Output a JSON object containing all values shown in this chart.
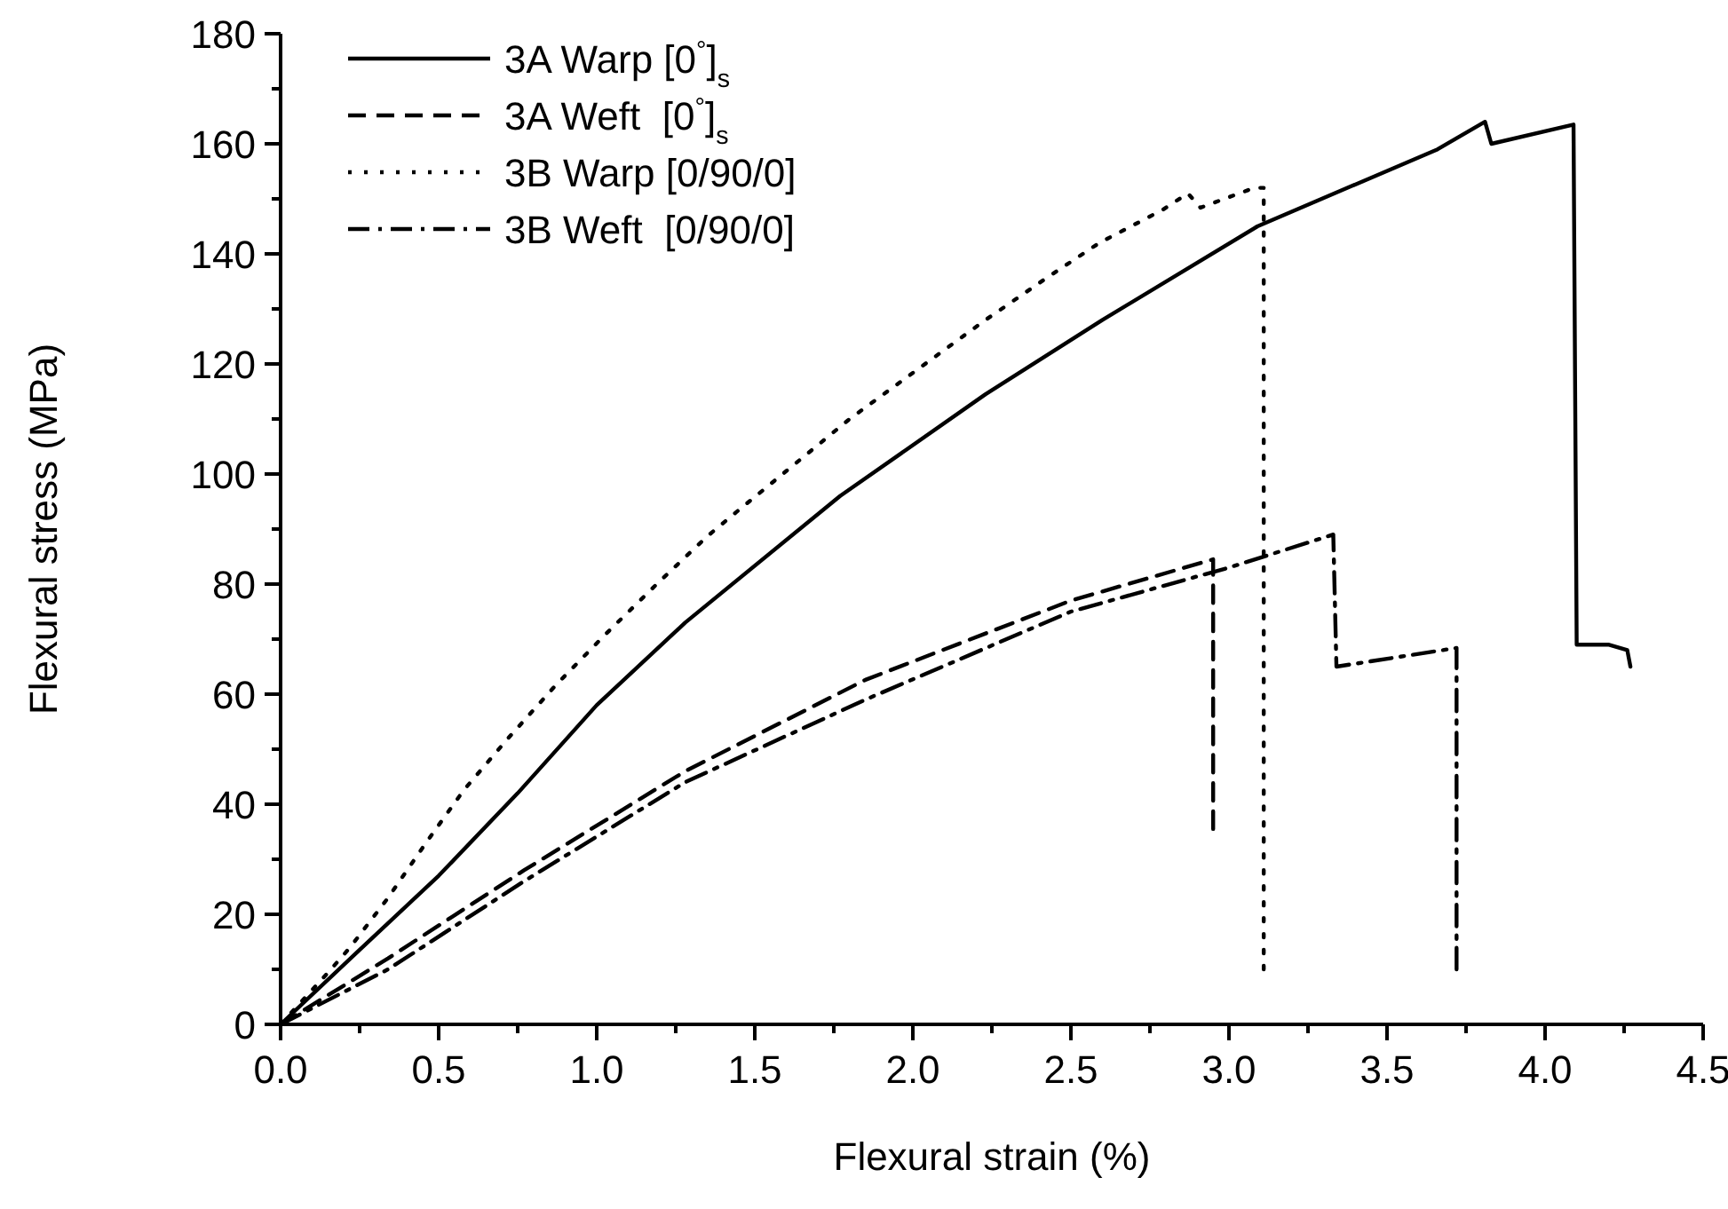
{
  "chart_data": {
    "type": "line",
    "xlabel": "Flexural strain (%)",
    "ylabel": "Flexural stress (MPa)",
    "xlim": [
      0,
      4.5
    ],
    "ylim": [
      0,
      180
    ],
    "xticks": [
      {
        "value": 0,
        "label": "0.0"
      },
      {
        "value": 0.25,
        "label": null
      },
      {
        "value": 0.5,
        "label": "0.5"
      },
      {
        "value": 0.75,
        "label": null
      },
      {
        "value": 1,
        "label": "1.0"
      },
      {
        "value": 1.25,
        "label": null
      },
      {
        "value": 1.5,
        "label": "1.5"
      },
      {
        "value": 1.75,
        "label": null
      },
      {
        "value": 2,
        "label": "2.0"
      },
      {
        "value": 2.25,
        "label": null
      },
      {
        "value": 2.5,
        "label": "2.5"
      },
      {
        "value": 2.75,
        "label": null
      },
      {
        "value": 3,
        "label": "3.0"
      },
      {
        "value": 3.25,
        "label": null
      },
      {
        "value": 3.5,
        "label": "3.5"
      },
      {
        "value": 3.75,
        "label": null
      },
      {
        "value": 4,
        "label": "4.0"
      },
      {
        "value": 4.25,
        "label": null
      },
      {
        "value": 4.5,
        "label": "4.5"
      }
    ],
    "yticks": [
      0,
      {
        "value": 10,
        "label": null
      },
      20,
      {
        "value": 30,
        "label": null
      },
      40,
      {
        "value": 50,
        "label": null
      },
      60,
      {
        "value": 70,
        "label": null
      },
      80,
      {
        "value": 90,
        "label": null
      },
      100,
      {
        "value": 110,
        "label": null
      },
      120,
      {
        "value": 130,
        "label": null
      },
      140,
      {
        "value": 150,
        "label": null
      },
      160,
      {
        "value": 170,
        "label": null
      },
      180
    ],
    "grid": false,
    "legend": "top left",
    "marker": "none",
    "series": [
      {
        "name": "3A Warp [0$^{°}$]$_{s}$",
        "color": "#000000",
        "line_style": "solid",
        "x": [
          0,
          0.24,
          0.5,
          0.75,
          1.0,
          1.28,
          1.77,
          2.23,
          2.6,
          3.09,
          3.66,
          3.81,
          3.83,
          4.09,
          4.1,
          4.2,
          4.26,
          4.27
        ],
        "values": [
          0,
          13,
          27,
          42,
          58,
          73,
          96,
          114.5,
          128,
          145,
          159,
          164,
          160,
          163.5,
          69,
          69,
          68,
          65
        ]
      },
      {
        "name": "3A Weft  [0$^{°}$]$_{s}$",
        "color": "#000000",
        "line_style": "dashed",
        "x": [
          0,
          0.34,
          0.77,
          1.28,
          1.85,
          2.5,
          2.95,
          2.95
        ],
        "values": [
          0,
          12,
          28,
          46,
          62.6,
          77,
          84.5,
          35.5
        ]
      },
      {
        "name": "3B Warp [0/90/0]",
        "color": "#000000",
        "line_style": "dotted",
        "x": [
          0,
          0.15,
          0.22,
          0.34,
          0.46,
          0.58,
          0.72,
          0.87,
          1.03,
          1.19,
          1.35,
          1.44,
          1.8,
          2.23,
          2.42,
          2.59,
          2.79,
          2.87,
          2.91,
          3.08,
          3.11,
          3.11
        ],
        "values": [
          0,
          9.4,
          14,
          23,
          33,
          42.6,
          52,
          61.6,
          71,
          80,
          88.7,
          93,
          110,
          128,
          135.5,
          142,
          148,
          151,
          148.4,
          152,
          152,
          10
        ]
      },
      {
        "name": "3B Weft  [0/90/0]",
        "color": "#000000",
        "line_style": "dashdot",
        "x": [
          0,
          0.34,
          0.77,
          1.28,
          1.85,
          2.5,
          3.0,
          3.33,
          3.34,
          3.72,
          3.72
        ],
        "values": [
          0,
          10,
          26,
          44,
          59,
          75,
          83,
          89,
          65,
          68.4,
          10
        ]
      }
    ]
  }
}
